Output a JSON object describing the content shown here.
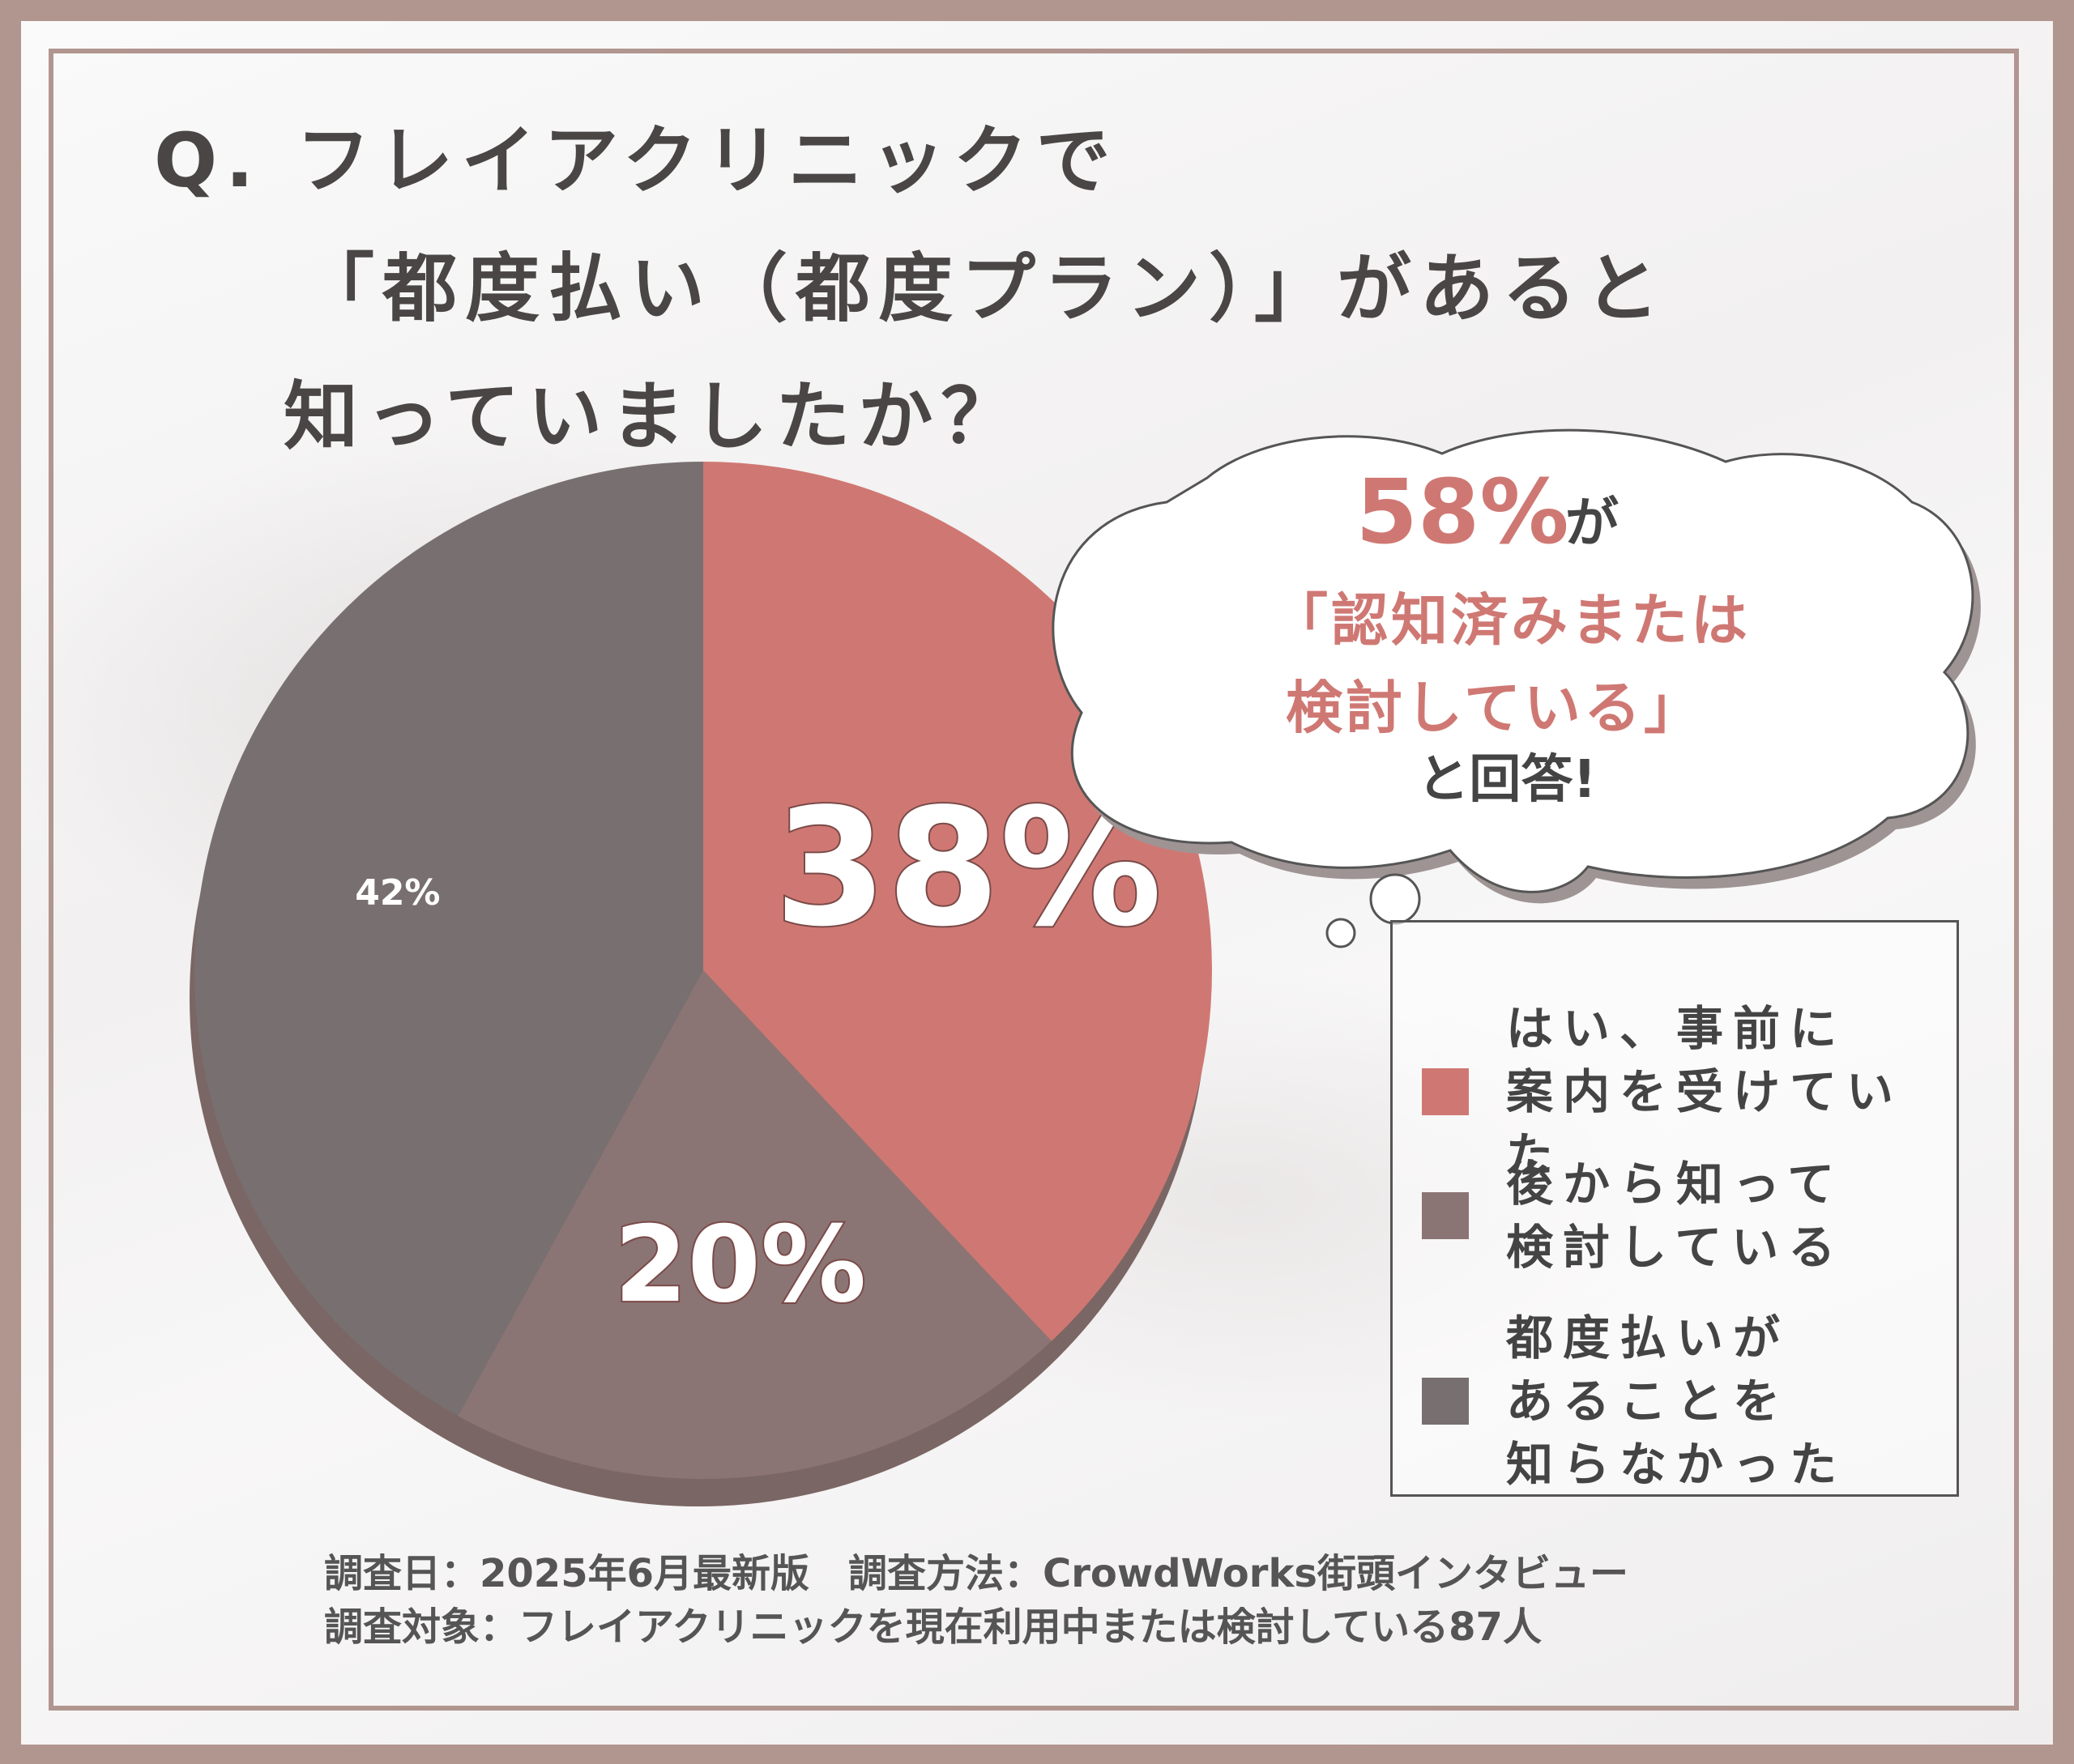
{
  "title": {
    "line1": "Q. フレイアクリニックで",
    "line2": "「都度払い（都度プラン）」があると",
    "line3": "知っていましたか？"
  },
  "bubble": {
    "percent": "58%",
    "ga": "が",
    "line2": "「認知済みまたは",
    "line3": "検討している」",
    "line4": "と回答!"
  },
  "chart_data": {
    "type": "pie",
    "slices": [
      {
        "label": "はい、事前に\n案内を受けていた",
        "value": 38,
        "display": "38%",
        "color": "#cf7873"
      },
      {
        "label": "後から知って\n検討している",
        "value": 20,
        "display": "20%",
        "color": "#8b7574"
      },
      {
        "label": "都度払いが\nあることを\n知らなかった",
        "value": 42,
        "display": "42%",
        "color": "#787070"
      }
    ]
  },
  "colors": {
    "frame": "#b1968f",
    "accent": "#cf7873"
  },
  "footer": {
    "line1": "調査日：2025年6月最新版　調査方法：CrowdWorks街頭インタビュー",
    "line2": "調査対象：フレイアクリニックを現在利用中または検討している87人"
  }
}
